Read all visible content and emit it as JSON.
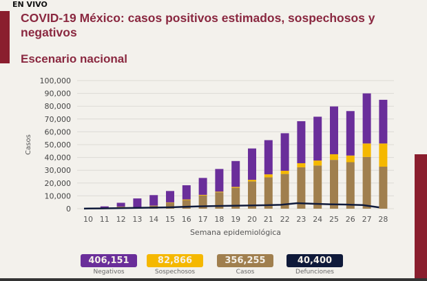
{
  "header": {
    "live": "EN VIVO",
    "title": "COVID-19 México: casos positivos estimados, sospechosos y negativos",
    "subtitle": "Escenario nacional"
  },
  "chart_data": {
    "type": "bar",
    "stacked": true,
    "xlabel": "Semana epidemiológica",
    "ylabel": "Casos",
    "ylim": [
      0,
      100000
    ],
    "yticks": [
      "0",
      "10,000",
      "20,000",
      "30,000",
      "40,000",
      "50,000",
      "60,000",
      "70,000",
      "80,000",
      "90,000",
      "100,000"
    ],
    "categories": [
      "10",
      "11",
      "12",
      "13",
      "14",
      "15",
      "16",
      "17",
      "18",
      "19",
      "20",
      "21",
      "22",
      "23",
      "24",
      "25",
      "26",
      "27",
      "28"
    ],
    "series": [
      {
        "name": "Casos",
        "color": "#a07f4e",
        "values": [
          200,
          600,
          1500,
          1000,
          2300,
          4600,
          6700,
          10300,
          12800,
          16300,
          21300,
          24500,
          27100,
          32300,
          33700,
          38100,
          36300,
          40400,
          32800
        ]
      },
      {
        "name": "Sospechosos",
        "color": "#f5b800",
        "values": [
          0,
          0,
          100,
          100,
          100,
          300,
          500,
          500,
          500,
          700,
          1200,
          2300,
          2500,
          3200,
          3900,
          4400,
          5200,
          10500,
          18100
        ]
      },
      {
        "name": "Negativos",
        "color": "#6a2e9a",
        "values": [
          300,
          1200,
          3000,
          6900,
          8200,
          8900,
          11100,
          13200,
          17700,
          20200,
          24500,
          26700,
          29300,
          32800,
          34200,
          37300,
          34700,
          39100,
          34100
        ]
      }
    ],
    "line": {
      "name": "Defunciones",
      "color": "#0f1a3a",
      "values": [
        100,
        200,
        400,
        600,
        800,
        1000,
        1400,
        1800,
        2100,
        2300,
        2500,
        2700,
        3000,
        4300,
        3800,
        3400,
        3200,
        2800,
        1000
      ]
    }
  },
  "summary": [
    {
      "value": "406,151",
      "label": "Negativos",
      "color": "#6a2e9a"
    },
    {
      "value": "82,866",
      "label": "Sospechosos",
      "color": "#f5b800"
    },
    {
      "value": "356,255",
      "label": "Casos",
      "color": "#a07f4e"
    },
    {
      "value": "40,400",
      "label": "Defunciones",
      "color": "#0f1a3a"
    }
  ]
}
